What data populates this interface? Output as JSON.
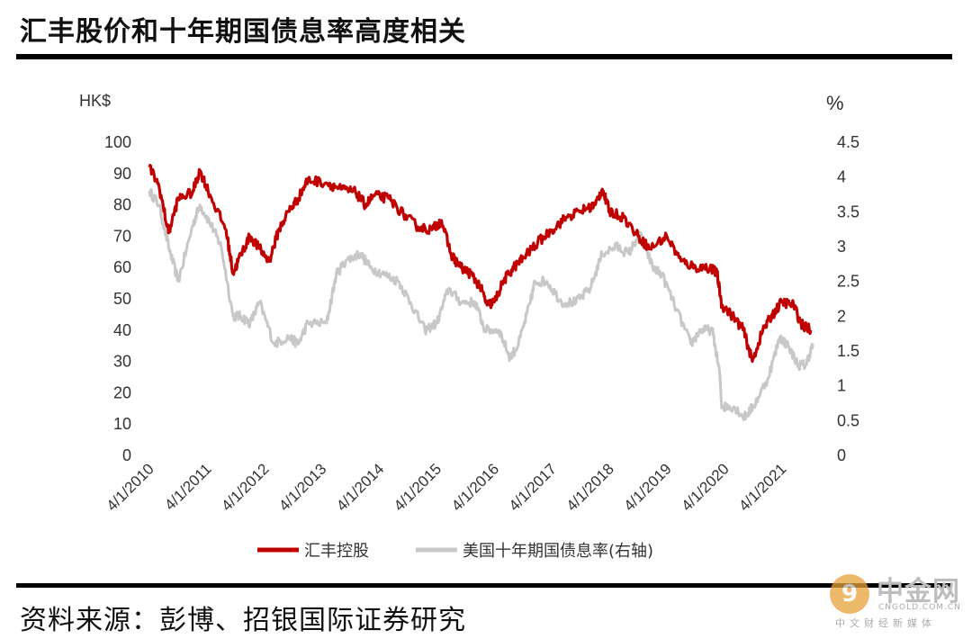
{
  "page": {
    "title": "汇丰股价和十年期国债息率高度相关",
    "source": "资料来源：彭博、招银国际证券研究"
  },
  "watermark": {
    "symbol": "9",
    "name": "中金网",
    "url": "CNGOLD.COM.CN",
    "tagline": "中文财经新媒体"
  },
  "chart_data": {
    "type": "line",
    "left_axis_unit": "HK$",
    "right_axis_unit": "%",
    "left_ylim": [
      0,
      100
    ],
    "right_ylim": [
      0,
      4.5
    ],
    "left_ticks": [
      "100",
      "90",
      "80",
      "70",
      "60",
      "50",
      "40",
      "30",
      "20",
      "10",
      "0"
    ],
    "right_ticks": [
      "4.5",
      "4",
      "3.5",
      "3",
      "2.5",
      "2",
      "1.5",
      "1",
      "0.5",
      "0"
    ],
    "x_ticks": [
      "4/1/2010",
      "4/1/2011",
      "4/1/2012",
      "4/1/2013",
      "4/1/2014",
      "4/1/2015",
      "4/1/2016",
      "4/1/2017",
      "4/1/2018",
      "4/1/2019",
      "4/1/2020",
      "4/1/2021"
    ],
    "grid": false,
    "legend_position": "bottom",
    "series": [
      {
        "name": "汇丰控股",
        "axis": "left",
        "color": "#c00000",
        "dates": [
          "2010-04-01",
          "2010-06-01",
          "2010-08-01",
          "2010-10-01",
          "2011-01-01",
          "2011-02-15",
          "2011-05-01",
          "2011-08-01",
          "2011-09-15",
          "2011-11-01",
          "2012-01-01",
          "2012-03-01",
          "2012-05-01",
          "2012-07-01",
          "2012-09-01",
          "2012-11-01",
          "2013-01-01",
          "2013-05-01",
          "2013-08-01",
          "2013-11-01",
          "2014-01-01",
          "2014-03-01",
          "2014-06-01",
          "2014-09-01",
          "2014-12-01",
          "2015-03-01",
          "2015-05-01",
          "2015-07-01",
          "2015-09-01",
          "2015-11-01",
          "2016-01-01",
          "2016-02-15",
          "2016-04-01",
          "2016-06-01",
          "2016-08-01",
          "2016-10-01",
          "2017-01-01",
          "2017-04-01",
          "2017-07-01",
          "2017-10-01",
          "2018-01-01",
          "2018-02-15",
          "2018-04-01",
          "2018-07-01",
          "2018-10-01",
          "2018-12-15",
          "2019-04-01",
          "2019-07-01",
          "2019-10-01",
          "2020-01-01",
          "2020-02-15",
          "2020-03-15",
          "2020-06-01",
          "2020-08-01",
          "2020-09-25",
          "2020-12-01",
          "2021-02-01",
          "2021-04-01",
          "2021-06-15",
          "2021-08-01",
          "2021-10-01"
        ],
        "values": [
          92,
          86,
          71,
          82,
          84,
          91,
          82,
          72,
          58,
          64,
          70,
          66,
          62,
          72,
          78,
          82,
          88,
          87,
          85,
          84,
          80,
          83,
          82,
          77,
          73,
          72,
          75,
          64,
          60,
          58,
          54,
          48,
          49,
          56,
          60,
          63,
          68,
          72,
          76,
          78,
          80,
          85,
          78,
          76,
          70,
          66,
          70,
          62,
          60,
          60,
          58,
          48,
          44,
          40,
          30,
          40,
          45,
          49,
          48,
          42,
          40
        ]
      },
      {
        "name": "美国十年期国债息率(右轴)",
        "axis": "right",
        "color": "#c8c8c8",
        "dates": [
          "2010-04-01",
          "2010-06-01",
          "2010-08-01",
          "2010-10-01",
          "2011-01-01",
          "2011-02-15",
          "2011-05-01",
          "2011-07-01",
          "2011-09-15",
          "2011-11-01",
          "2012-01-01",
          "2012-03-01",
          "2012-06-01",
          "2012-09-01",
          "2012-11-01",
          "2013-01-01",
          "2013-05-01",
          "2013-07-01",
          "2013-09-01",
          "2013-12-01",
          "2014-02-01",
          "2014-05-01",
          "2014-08-01",
          "2014-10-15",
          "2015-01-15",
          "2015-04-01",
          "2015-06-15",
          "2015-09-01",
          "2015-12-01",
          "2016-02-01",
          "2016-05-01",
          "2016-07-10",
          "2016-09-01",
          "2016-11-15",
          "2016-12-15",
          "2017-03-01",
          "2017-06-01",
          "2017-09-01",
          "2017-12-01",
          "2018-02-15",
          "2018-05-15",
          "2018-08-01",
          "2018-10-15",
          "2019-01-01",
          "2019-03-01",
          "2019-06-01",
          "2019-09-01",
          "2019-11-01",
          "2020-01-15",
          "2020-03-01",
          "2020-03-15",
          "2020-06-01",
          "2020-08-05",
          "2020-10-01",
          "2021-01-01",
          "2021-03-20",
          "2021-05-01",
          "2021-07-15",
          "2021-09-01",
          "2021-10-15"
        ],
        "values": [
          3.8,
          3.6,
          3.0,
          2.5,
          3.3,
          3.6,
          3.3,
          3.0,
          2.0,
          2.0,
          1.9,
          2.2,
          1.6,
          1.7,
          1.6,
          1.9,
          1.9,
          2.6,
          2.8,
          2.9,
          2.7,
          2.6,
          2.5,
          2.2,
          1.8,
          1.9,
          2.4,
          2.2,
          2.2,
          1.8,
          1.8,
          1.4,
          1.6,
          2.2,
          2.5,
          2.5,
          2.2,
          2.2,
          2.4,
          2.9,
          3.0,
          2.9,
          3.2,
          2.7,
          2.6,
          2.1,
          1.6,
          1.8,
          1.8,
          1.2,
          0.7,
          0.7,
          0.55,
          0.7,
          1.1,
          1.7,
          1.6,
          1.3,
          1.3,
          1.6
        ]
      }
    ]
  }
}
